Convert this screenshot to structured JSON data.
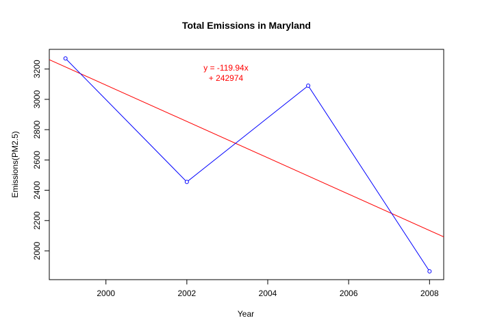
{
  "chart_data": {
    "type": "line",
    "title": "Total Emissions in Maryland",
    "xlabel": "Year",
    "ylabel": "Emissions(PM2.5)",
    "xlim": [
      1998.6,
      2008.35
    ],
    "ylim": [
      1810,
      3330
    ],
    "x_ticks": [
      2000,
      2002,
      2004,
      2006,
      2008
    ],
    "y_ticks": [
      2000,
      2200,
      2400,
      2600,
      2800,
      3000,
      3200
    ],
    "grid": false,
    "series": [
      {
        "x": [
          1999,
          2002,
          2005,
          2008
        ],
        "y": [
          3270,
          2455,
          3090,
          1865
        ],
        "color": "#0000ff",
        "markers": "open-circle"
      }
    ],
    "fit_line": {
      "slope": -119.94,
      "intercept": 242974,
      "color": "#ff0000"
    },
    "annotation": {
      "lines": [
        "y = -119.94x",
        "+ 242974"
      ],
      "color": "#ff0000"
    }
  }
}
